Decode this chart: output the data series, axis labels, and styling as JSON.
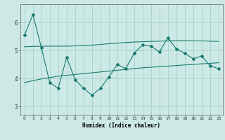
{
  "xlabel": "Humidex (Indice chaleur)",
  "bg_color": "#cce9e5",
  "grid_color": "#aad4d0",
  "line_color": "#1a7a72",
  "x_ticks": [
    0,
    1,
    2,
    3,
    4,
    5,
    6,
    7,
    8,
    9,
    10,
    11,
    12,
    13,
    14,
    15,
    16,
    17,
    18,
    19,
    20,
    21,
    22,
    23
  ],
  "y_ticks": [
    3,
    4,
    5,
    6
  ],
  "ylim": [
    2.7,
    6.65
  ],
  "xlim": [
    -0.5,
    23.5
  ],
  "series1_x": [
    0,
    1,
    2,
    3,
    4,
    5,
    6,
    7,
    8,
    9,
    10,
    11,
    12,
    13,
    14,
    15,
    16,
    17,
    18,
    19,
    20,
    21,
    22,
    23
  ],
  "series1_y": [
    5.55,
    6.28,
    5.1,
    3.85,
    3.65,
    4.75,
    3.95,
    3.65,
    3.4,
    3.65,
    4.05,
    4.5,
    4.35,
    4.9,
    5.2,
    5.15,
    4.95,
    5.45,
    5.05,
    4.9,
    4.7,
    4.8,
    4.45,
    4.35
  ],
  "series2_x": [
    0,
    1,
    2,
    3,
    4,
    5,
    6,
    7,
    8,
    9,
    10,
    11,
    12,
    13,
    14,
    15,
    16,
    17,
    18,
    19,
    20,
    21,
    22,
    23
  ],
  "series2_y": [
    5.13,
    5.14,
    5.15,
    5.15,
    5.15,
    5.15,
    5.16,
    5.17,
    5.19,
    5.21,
    5.24,
    5.26,
    5.28,
    5.3,
    5.31,
    5.32,
    5.33,
    5.34,
    5.35,
    5.35,
    5.34,
    5.34,
    5.33,
    5.32
  ],
  "series3_x": [
    0,
    1,
    2,
    3,
    4,
    5,
    6,
    7,
    8,
    9,
    10,
    11,
    12,
    13,
    14,
    15,
    16,
    17,
    18,
    19,
    20,
    21,
    22,
    23
  ],
  "series3_y": [
    3.85,
    3.92,
    3.98,
    4.03,
    4.08,
    4.11,
    4.14,
    4.17,
    4.2,
    4.23,
    4.26,
    4.29,
    4.32,
    4.35,
    4.38,
    4.4,
    4.42,
    4.44,
    4.46,
    4.48,
    4.5,
    4.52,
    4.54,
    4.56
  ]
}
